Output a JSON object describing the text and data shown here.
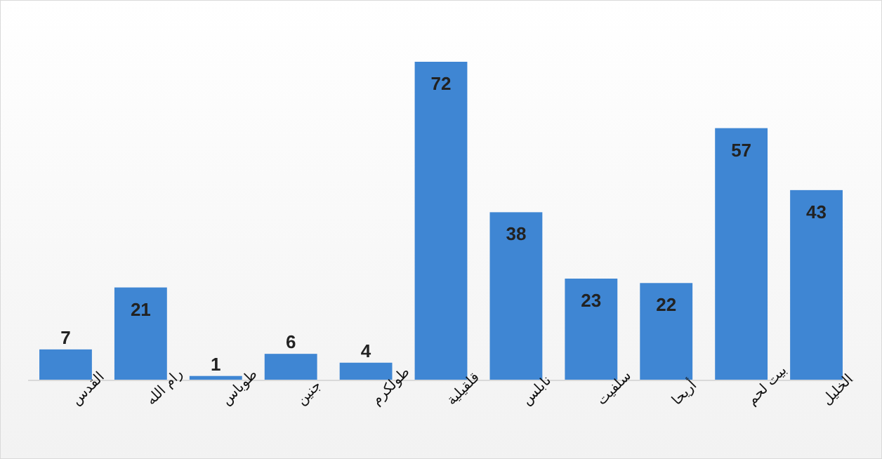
{
  "chart_data": {
    "type": "bar",
    "categories": [
      "القدس",
      "رام الله",
      "طوباس",
      "جنين",
      "طولكرم",
      "قلقيلية",
      "نابلس",
      "سلفيت",
      "أريحا",
      "بيت لحم",
      "الخليل"
    ],
    "values": [
      7,
      21,
      1,
      6,
      4,
      72,
      38,
      23,
      22,
      57,
      43
    ],
    "color": "#3f86d3",
    "data_labels": true
  }
}
